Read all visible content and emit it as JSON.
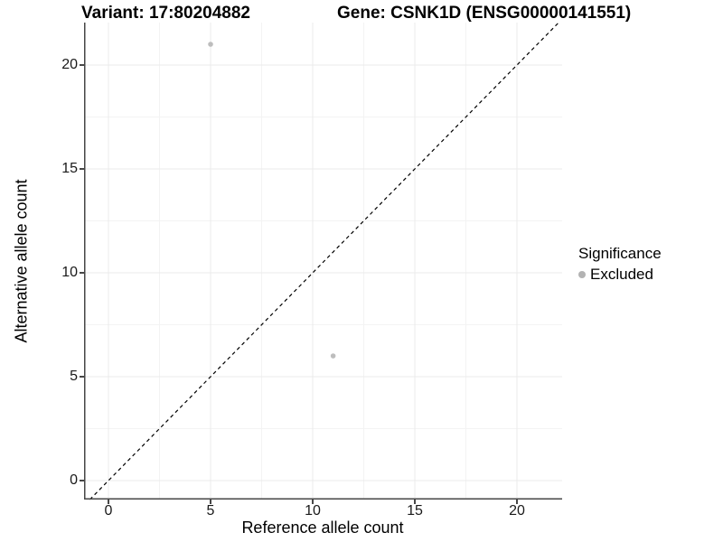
{
  "chart_data": {
    "type": "scatter",
    "title_left": "Variant: 17:80204882",
    "title_right": "Gene: CSNK1D (ENSG00000141551)",
    "xlabel": "Reference allele count",
    "ylabel": "Alternative allele count",
    "xlim": [
      -1.195,
      22.212
    ],
    "ylim": [
      -0.913,
      22.043
    ],
    "xticks": [
      0,
      5,
      10,
      15,
      20
    ],
    "yticks": [
      0,
      5,
      10,
      15,
      20
    ],
    "minor_xticks": [
      2.5,
      7.5,
      12.5,
      17.5
    ],
    "minor_yticks": [
      2.5,
      7.5,
      12.5,
      17.5
    ],
    "grid": true,
    "identity_line": {
      "slope": 1,
      "intercept": 0,
      "style": "dashed",
      "color": "#000000"
    },
    "series": [
      {
        "name": "Excluded",
        "color": "#bdbdbd",
        "points": [
          {
            "x": 5,
            "y": 21
          },
          {
            "x": 11,
            "y": 6
          }
        ]
      }
    ],
    "legend": {
      "title": "Significance",
      "position": "right",
      "entries": [
        {
          "label": "Excluded",
          "color": "#b3b3b3"
        }
      ]
    },
    "colors": {
      "axis_line": "#474747",
      "grid_major": "#ebebeb",
      "grid_minor": "#f3f3f3",
      "point": "#bdbdbd",
      "background": "#ffffff"
    }
  }
}
